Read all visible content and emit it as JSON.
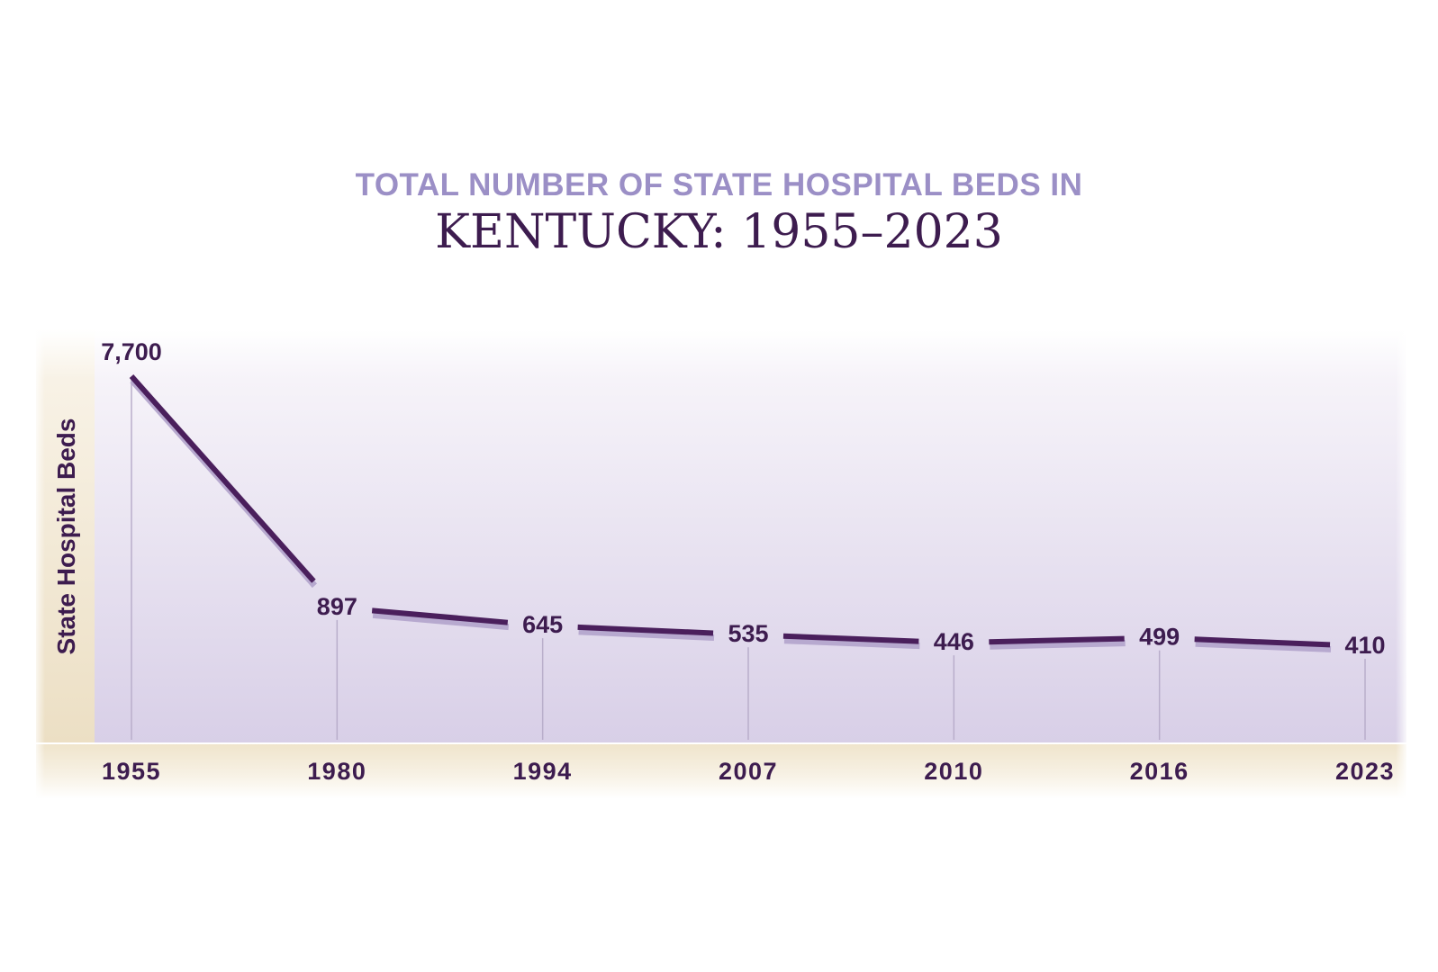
{
  "chart_data": {
    "type": "line",
    "title_line1": "TOTAL NUMBER OF STATE HOSPITAL BEDS IN",
    "title_line2": "KENTUCKY: 1955–2023",
    "ylabel": "State Hospital Beds",
    "xlabel": "",
    "categories": [
      "1955",
      "1980",
      "1994",
      "2007",
      "2010",
      "2016",
      "2023"
    ],
    "values": [
      7700,
      897,
      645,
      535,
      446,
      499,
      410
    ],
    "labels": [
      "7,700",
      "897",
      "645",
      "535",
      "446",
      "499",
      "410"
    ],
    "ylim": [
      0,
      7700
    ],
    "grid": false,
    "colors": {
      "line": "#4a1f5c",
      "label": "#3d1c4f",
      "title_top": "#9b8fc6",
      "plot_top": "#faf9fc",
      "plot_bottom": "#d9d0e8",
      "band": "#efe4cb"
    }
  }
}
